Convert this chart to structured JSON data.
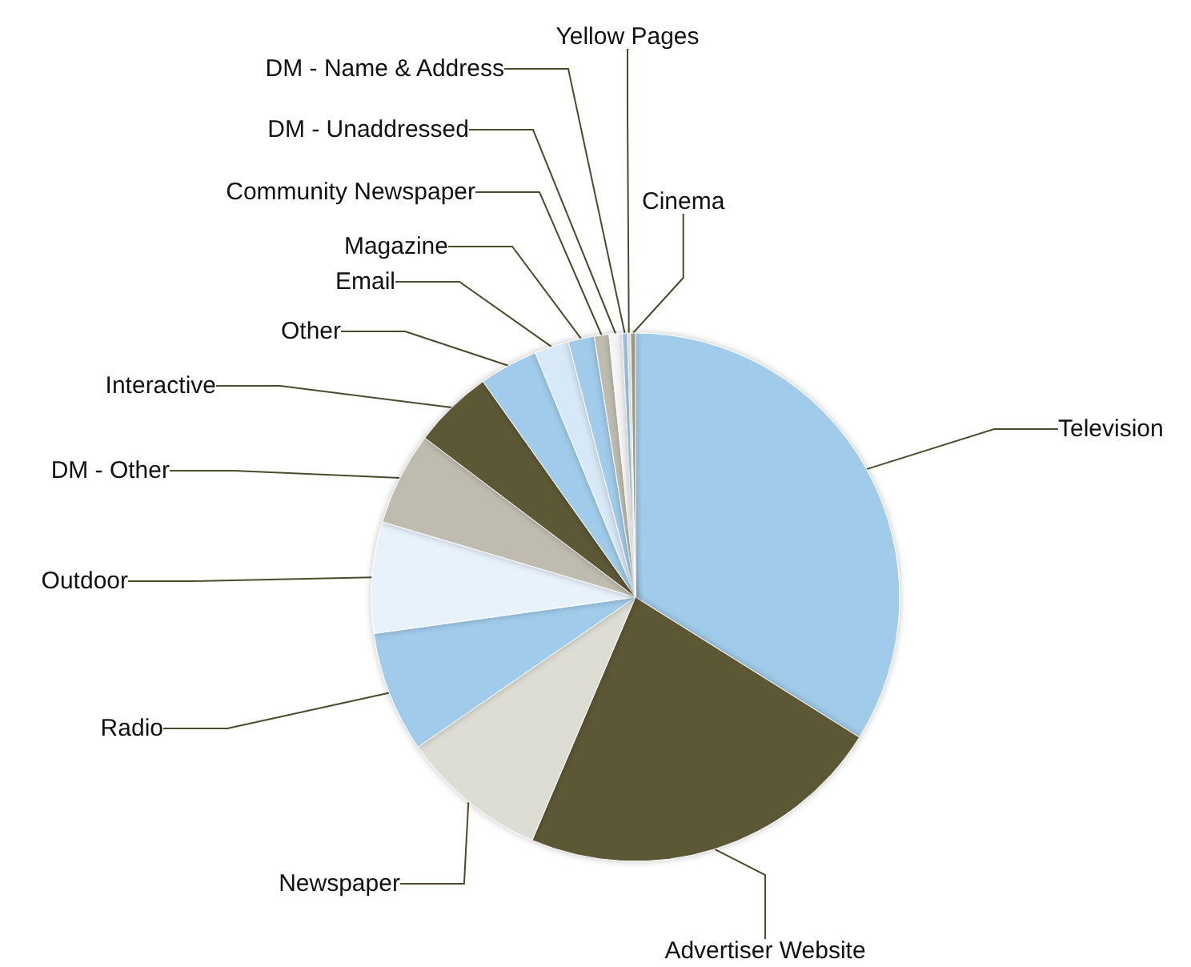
{
  "chart_data": {
    "type": "pie",
    "categories": [
      "Television",
      "Advertiser Website",
      "Newspaper",
      "Radio",
      "Outdoor",
      "DM - Other",
      "Interactive",
      "Other",
      "Email",
      "Magazine",
      "Community Newspaper",
      "DM - Unaddressed",
      "DM - Name & Address",
      "Yellow Pages",
      "Cinema"
    ],
    "values": [
      33.9,
      22.5,
      9,
      7.4,
      6.8,
      5.7,
      4.9,
      3.6,
      2.1,
      1.6,
      0.9,
      0.8,
      0.3,
      0.2,
      0.3
    ],
    "colors": [
      "#a0cbea",
      "#5b5836",
      "#deddd4",
      "#a0cbea",
      "#e8f2fb",
      "#bfbcaf",
      "#5b5836",
      "#a0cbea",
      "#d7e8f6",
      "#a0cbea",
      "#bfbcaf",
      "#f4f4f4",
      "#a0cbea",
      "#eeeeee",
      "#9a9a80"
    ],
    "legend": false
  }
}
